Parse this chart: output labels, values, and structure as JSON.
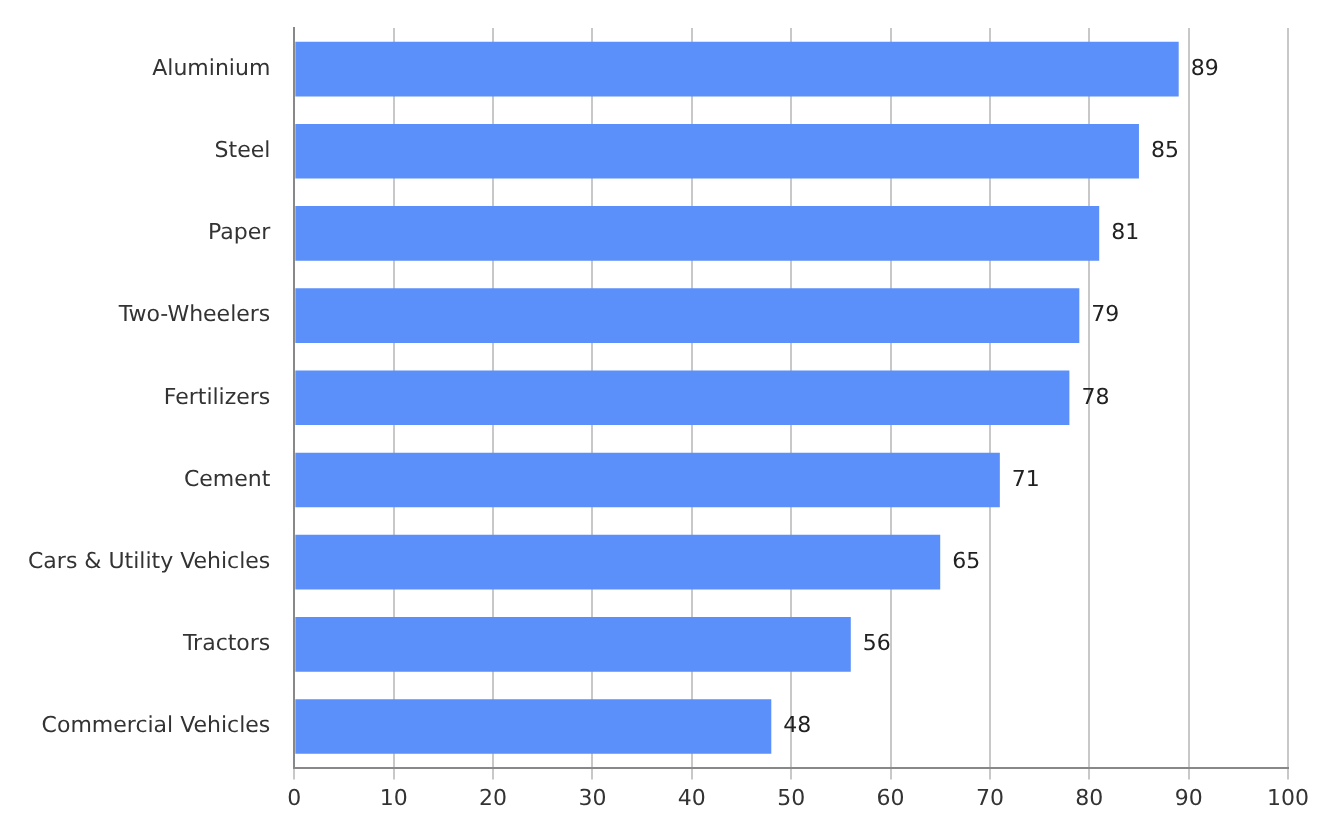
{
  "chart_data": {
    "type": "bar",
    "orientation": "horizontal",
    "categories": [
      "Aluminium",
      "Steel",
      "Paper",
      "Two-Wheelers",
      "Fertilizers",
      "Cement",
      "Cars & Utility Vehicles",
      "Tractors",
      "Commercial Vehicles"
    ],
    "values": [
      89,
      85,
      81,
      79,
      78,
      71,
      65,
      56,
      48
    ],
    "color": "#5b8ff9",
    "xlim": [
      0,
      100
    ],
    "xticks": [
      0,
      10,
      20,
      30,
      40,
      50,
      60,
      70,
      80,
      90,
      100
    ],
    "grid": "x",
    "legend": false,
    "data_labels": true
  }
}
